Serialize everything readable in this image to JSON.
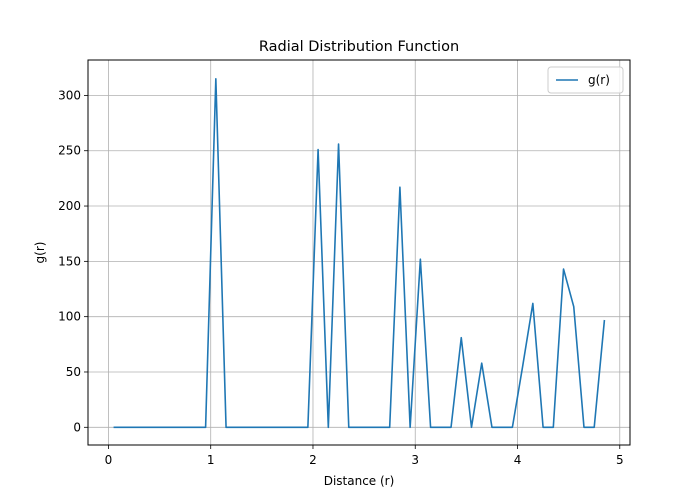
{
  "chart_data": {
    "type": "line",
    "title": "Radial Distribution Function",
    "xlabel": "Distance (r)",
    "ylabel": "g(r)",
    "xlim": [
      -0.2,
      5.1
    ],
    "ylim": [
      -16,
      332
    ],
    "xticks": [
      0,
      1,
      2,
      3,
      4,
      5
    ],
    "yticks": [
      0,
      50,
      100,
      150,
      200,
      250,
      300
    ],
    "grid": true,
    "legend_position": "top-right",
    "series": [
      {
        "name": "g(r)",
        "color": "#1f77b4",
        "x": [
          0.05,
          0.15,
          0.25,
          0.35,
          0.45,
          0.55,
          0.65,
          0.75,
          0.85,
          0.95,
          1.05,
          1.15,
          1.25,
          1.35,
          1.45,
          1.55,
          1.65,
          1.75,
          1.85,
          1.95,
          2.05,
          2.15,
          2.25,
          2.35,
          2.45,
          2.55,
          2.65,
          2.75,
          2.85,
          2.95,
          3.05,
          3.15,
          3.25,
          3.35,
          3.45,
          3.55,
          3.65,
          3.75,
          3.85,
          3.95,
          4.05,
          4.15,
          4.25,
          4.35,
          4.45,
          4.55,
          4.65,
          4.75,
          4.85
        ],
        "y": [
          0,
          0,
          0,
          0,
          0,
          0,
          0,
          0,
          0,
          0,
          315,
          0,
          0,
          0,
          0,
          0,
          0,
          0,
          0,
          0,
          251,
          0,
          256,
          0,
          0,
          0,
          0,
          0,
          217,
          0,
          152,
          0,
          0,
          0,
          81,
          0,
          58,
          0,
          0,
          0,
          55,
          112,
          0,
          0,
          143,
          109,
          0,
          0,
          97
        ]
      }
    ]
  }
}
